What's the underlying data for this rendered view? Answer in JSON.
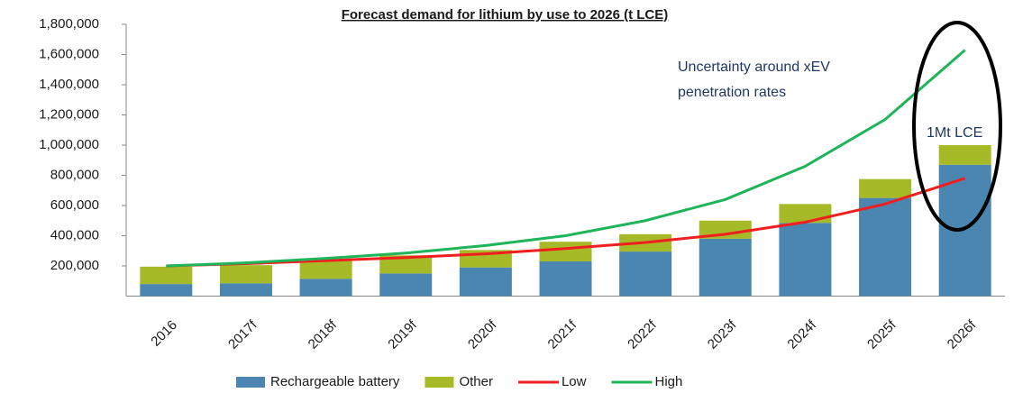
{
  "chart_data": {
    "type": "bar_line",
    "title": "Forecast demand for lithium by use to 2026 (t LCE)",
    "categories": [
      "2016",
      "2017f",
      "2018f",
      "2019f",
      "2020f",
      "2021f",
      "2022f",
      "2023f",
      "2024f",
      "2025f",
      "2026f"
    ],
    "series": [
      {
        "name": "Rechargeable battery",
        "type": "bar",
        "color": "#4a86b0",
        "values": [
          80000,
          85000,
          115000,
          150000,
          190000,
          230000,
          295000,
          380000,
          485000,
          650000,
          870000
        ]
      },
      {
        "name": "Other",
        "type": "bar",
        "color": "#a6b927",
        "values": [
          115000,
          120000,
          120000,
          120000,
          115000,
          130000,
          115000,
          120000,
          125000,
          125000,
          130000
        ]
      },
      {
        "name": "Low",
        "type": "line",
        "color": "#f01e1e",
        "values": [
          200000,
          215000,
          235000,
          255000,
          280000,
          315000,
          355000,
          410000,
          490000,
          610000,
          780000
        ]
      },
      {
        "name": "High",
        "type": "line",
        "color": "#1eb45a",
        "values": [
          200000,
          220000,
          250000,
          285000,
          335000,
          400000,
          500000,
          640000,
          860000,
          1170000,
          1630000
        ]
      }
    ],
    "annotations": [
      "Uncertainty around xEV",
      "penetration rates",
      "1Mt LCE"
    ],
    "ylim": [
      0,
      1800000
    ],
    "yticks": [
      {
        "value": 200000,
        "label": "200,000"
      },
      {
        "value": 400000,
        "label": "400,000"
      },
      {
        "value": 600000,
        "label": "600,000"
      },
      {
        "value": 800000,
        "label": "800,000"
      },
      {
        "value": 1000000,
        "label": "1,000,000"
      },
      {
        "value": 1200000,
        "label": "1,200,000"
      },
      {
        "value": 1400000,
        "label": "1,400,000"
      },
      {
        "value": 1600000,
        "label": "1,600,000"
      },
      {
        "value": 1800000,
        "label": "1,800,000"
      }
    ],
    "grid": false,
    "legend": "bottom"
  }
}
